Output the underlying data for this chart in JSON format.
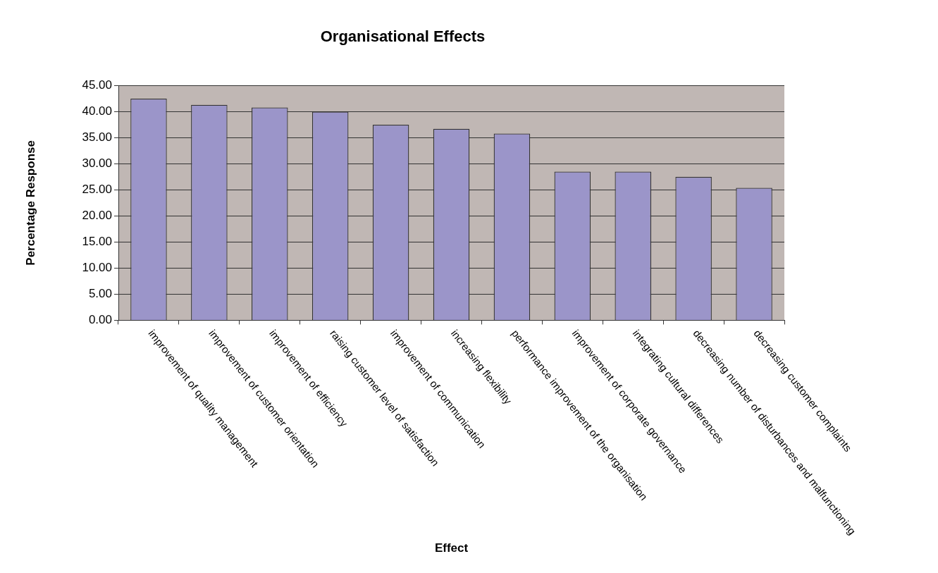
{
  "chart_data": {
    "type": "bar",
    "title": "Organisational Effects",
    "xlabel": "Effect",
    "ylabel": "Percentage Response",
    "categories": [
      "improvement of quality management",
      "improvement of customer orientation",
      "improvement of efficiency",
      "raising customer level of satisfaction",
      "improvement of communication",
      "increasing flexibility",
      "performance improvement of the organisation",
      "improvement of corporate governance",
      "integrating cultural differences",
      "decreasing number of disturbances and malfunctioning",
      "decreasing customer complaints"
    ],
    "values": [
      42.5,
      41.3,
      40.8,
      40.0,
      37.5,
      36.7,
      35.8,
      28.5,
      28.5,
      27.5,
      25.4
    ],
    "color": "#9b95c9",
    "ylim": [
      0,
      45
    ],
    "yticks": [
      {
        "value": 0,
        "label": "0.00"
      },
      {
        "value": 5,
        "label": "5.00"
      },
      {
        "value": 10,
        "label": "10.00"
      },
      {
        "value": 15,
        "label": "15.00"
      },
      {
        "value": 20,
        "label": "20.00"
      },
      {
        "value": 25,
        "label": "25.00"
      },
      {
        "value": 30,
        "label": "30.00"
      },
      {
        "value": 35,
        "label": "35.00"
      },
      {
        "value": 40,
        "label": "40.00"
      },
      {
        "value": 45,
        "label": "45.00"
      }
    ],
    "grid": "y",
    "legend": false
  }
}
